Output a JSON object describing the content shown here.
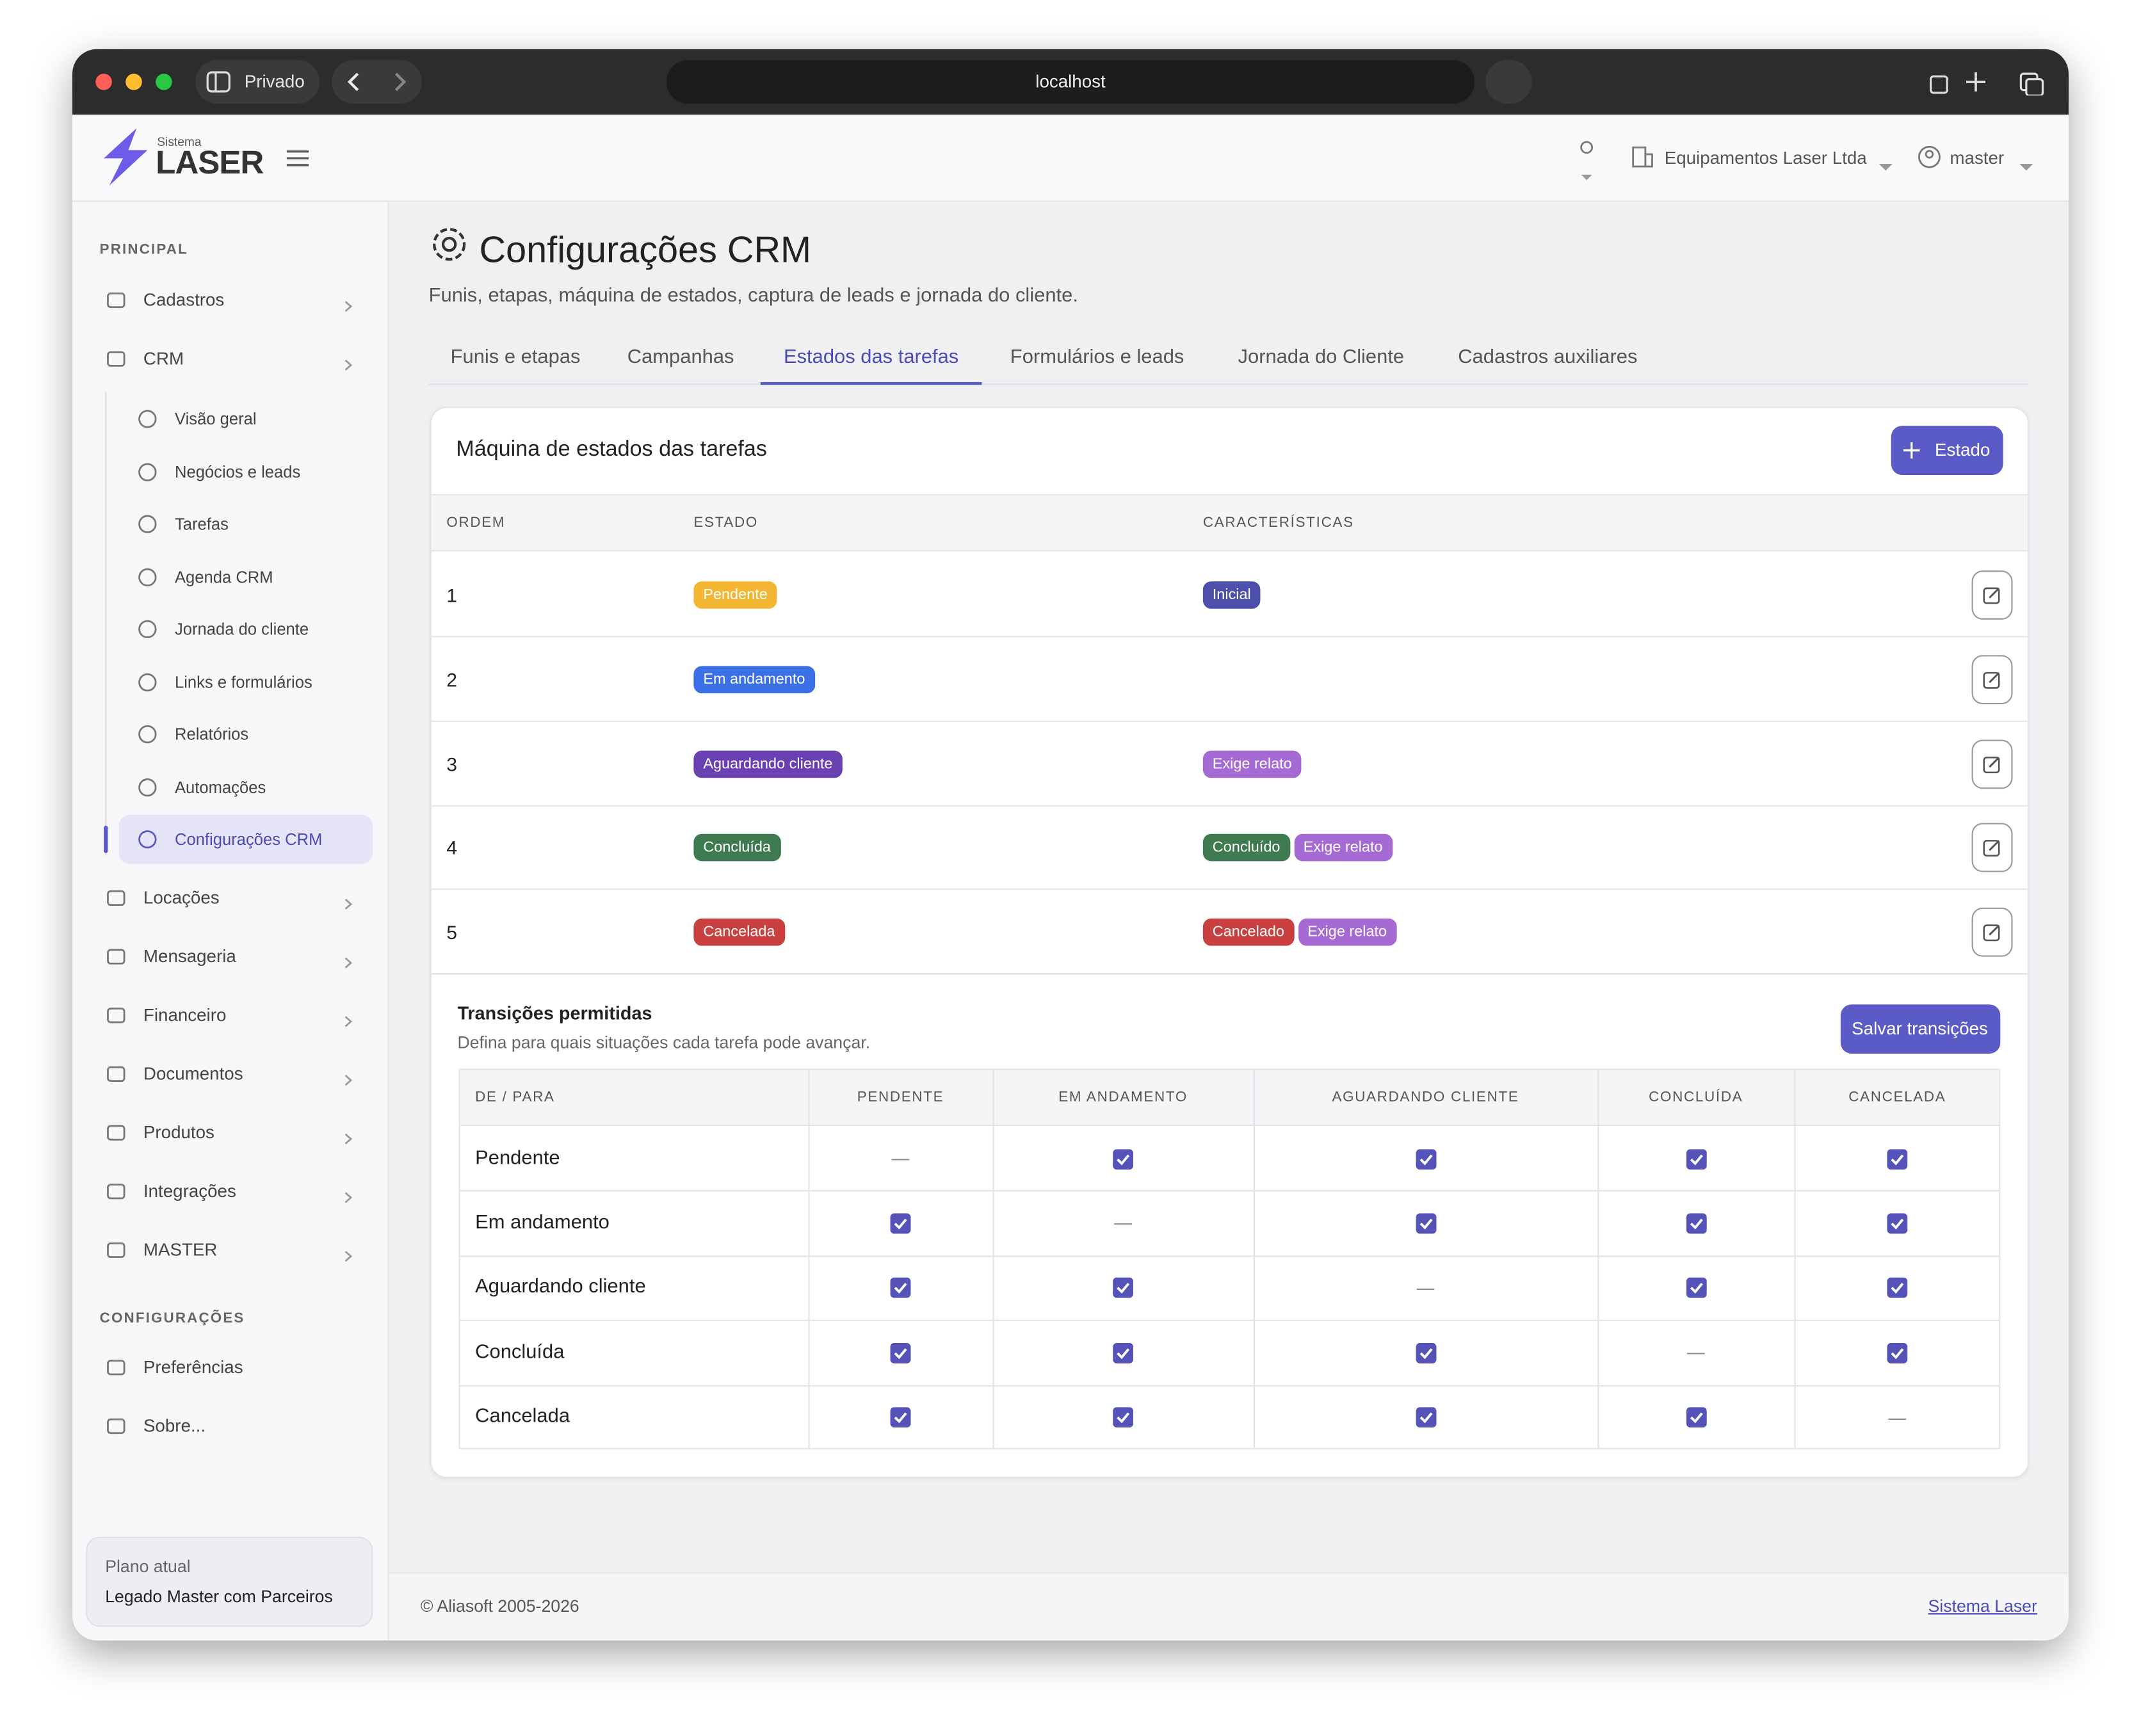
{
  "browser": {
    "private_label": "Privado",
    "url": "localhost"
  },
  "header": {
    "logo_small": "Sistema",
    "logo": "LASER",
    "company": "Equipamentos Laser Ltda",
    "user": "master"
  },
  "sidebar": {
    "principal_title": "PRINCIPAL",
    "items_top": [
      "Cadastros",
      "CRM"
    ],
    "crm_children": [
      "Visão geral",
      "Negócios e leads",
      "Tarefas",
      "Agenda CRM",
      "Jornada do cliente",
      "Links e formulários",
      "Relatórios",
      "Automações",
      "Configurações CRM"
    ],
    "active_child": 8,
    "items_bottom": [
      "Locações",
      "Mensageria",
      "Financeiro",
      "Documentos",
      "Produtos",
      "Integrações",
      "MASTER"
    ],
    "config_title": "CONFIGURAÇÕES",
    "config_items": [
      "Preferências",
      "Sobre..."
    ],
    "plan_label": "Plano atual",
    "plan_name": "Legado Master com Parceiros"
  },
  "page": {
    "title": "Configurações CRM",
    "subtitle": "Funis, etapas, máquina de estados, captura de leads e jornada do cliente.",
    "tabs": [
      "Funis e etapas",
      "Campanhas",
      "Estados das tarefas",
      "Formulários e leads",
      "Jornada do Cliente",
      "Cadastros auxiliares"
    ],
    "active_tab": 2
  },
  "states": {
    "title": "Máquina de estados das tarefas",
    "add_button": "Estado",
    "columns": [
      "ORDEM",
      "ESTADO",
      "CARACTERÍSTICAS"
    ],
    "rows": [
      {
        "order": 1,
        "state": "Pendente",
        "color": "#f2b632",
        "tags": [
          {
            "label": "Inicial",
            "color": "#4c50aa"
          }
        ]
      },
      {
        "order": 2,
        "state": "Em andamento",
        "color": "#3a6fe6",
        "tags": []
      },
      {
        "order": 3,
        "state": "Aguardando cliente",
        "color": "#6a40b3",
        "tags": [
          {
            "label": "Exige relato",
            "color": "#a56ad4"
          }
        ]
      },
      {
        "order": 4,
        "state": "Concluída",
        "color": "#3e7b50",
        "tags": [
          {
            "label": "Concluído",
            "color": "#3e7b50"
          },
          {
            "label": "Exige relato",
            "color": "#a56ad4"
          }
        ]
      },
      {
        "order": 5,
        "state": "Cancelada",
        "color": "#c8403f",
        "tags": [
          {
            "label": "Cancelado",
            "color": "#c8403f"
          },
          {
            "label": "Exige relato",
            "color": "#a56ad4"
          }
        ]
      }
    ]
  },
  "transitions": {
    "title": "Transições permitidas",
    "description": "Defina para quais situações cada tarefa pode avançar.",
    "save_button": "Salvar transições",
    "columns": [
      "DE / PARA",
      "PENDENTE",
      "EM ANDAMENTO",
      "AGUARDANDO CLIENTE",
      "CONCLUÍDA",
      "CANCELADA"
    ],
    "rows": [
      {
        "name": "Pendente",
        "cells": [
          "—",
          true,
          true,
          true,
          true
        ]
      },
      {
        "name": "Em andamento",
        "cells": [
          true,
          "—",
          true,
          true,
          true
        ]
      },
      {
        "name": "Aguardando cliente",
        "cells": [
          true,
          true,
          "—",
          true,
          true
        ]
      },
      {
        "name": "Concluída",
        "cells": [
          true,
          true,
          true,
          "—",
          true
        ]
      },
      {
        "name": "Cancelada",
        "cells": [
          true,
          true,
          true,
          true,
          "—"
        ]
      }
    ]
  },
  "footer": {
    "copyright": "© Aliasoft 2005-2026",
    "link": "Sistema Laser"
  }
}
